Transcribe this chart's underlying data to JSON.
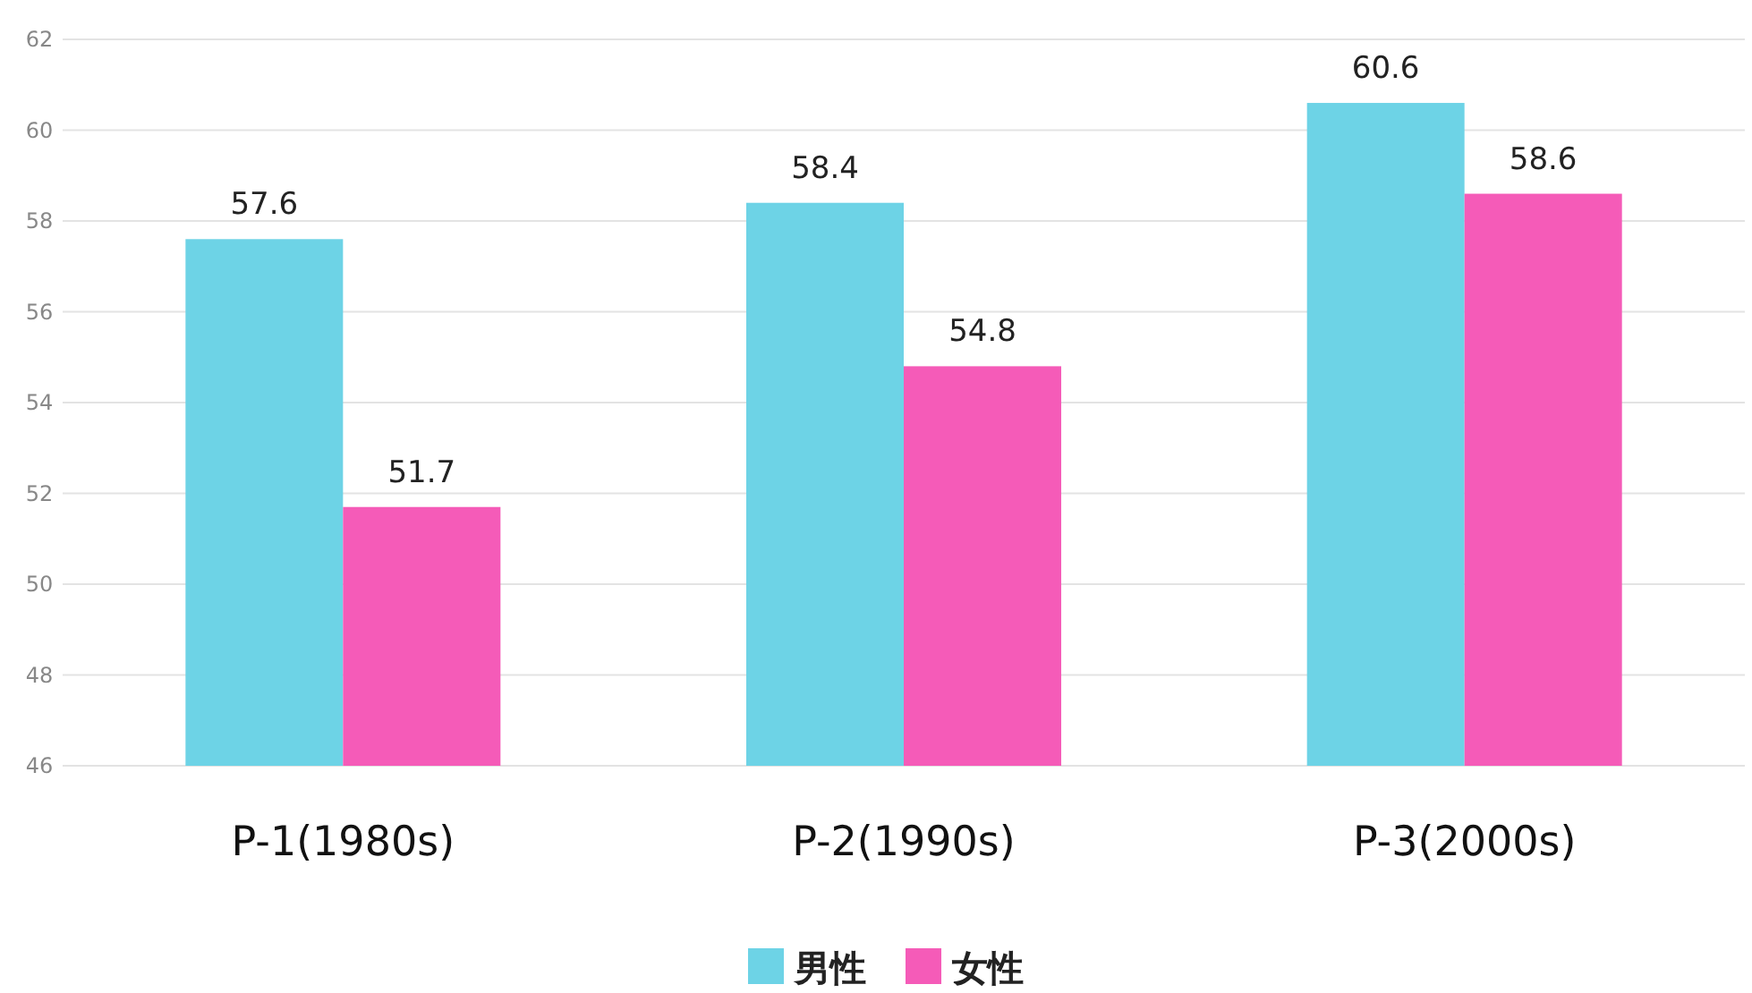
{
  "chart_data": {
    "type": "bar",
    "categories": [
      "P-1(1980s)",
      "P-2(1990s)",
      "P-3(2000s)"
    ],
    "series": [
      {
        "name": "男性",
        "color": "#6dd3e6",
        "values": [
          57.6,
          58.4,
          60.6
        ]
      },
      {
        "name": "女性",
        "color": "#f55bb8",
        "values": [
          51.7,
          54.8,
          58.6
        ]
      }
    ],
    "ylim": [
      46,
      62
    ],
    "yticks": [
      46,
      48,
      50,
      52,
      54,
      56,
      58,
      60,
      62
    ],
    "grid": "y",
    "legend": "bottom",
    "data_labels": true
  }
}
